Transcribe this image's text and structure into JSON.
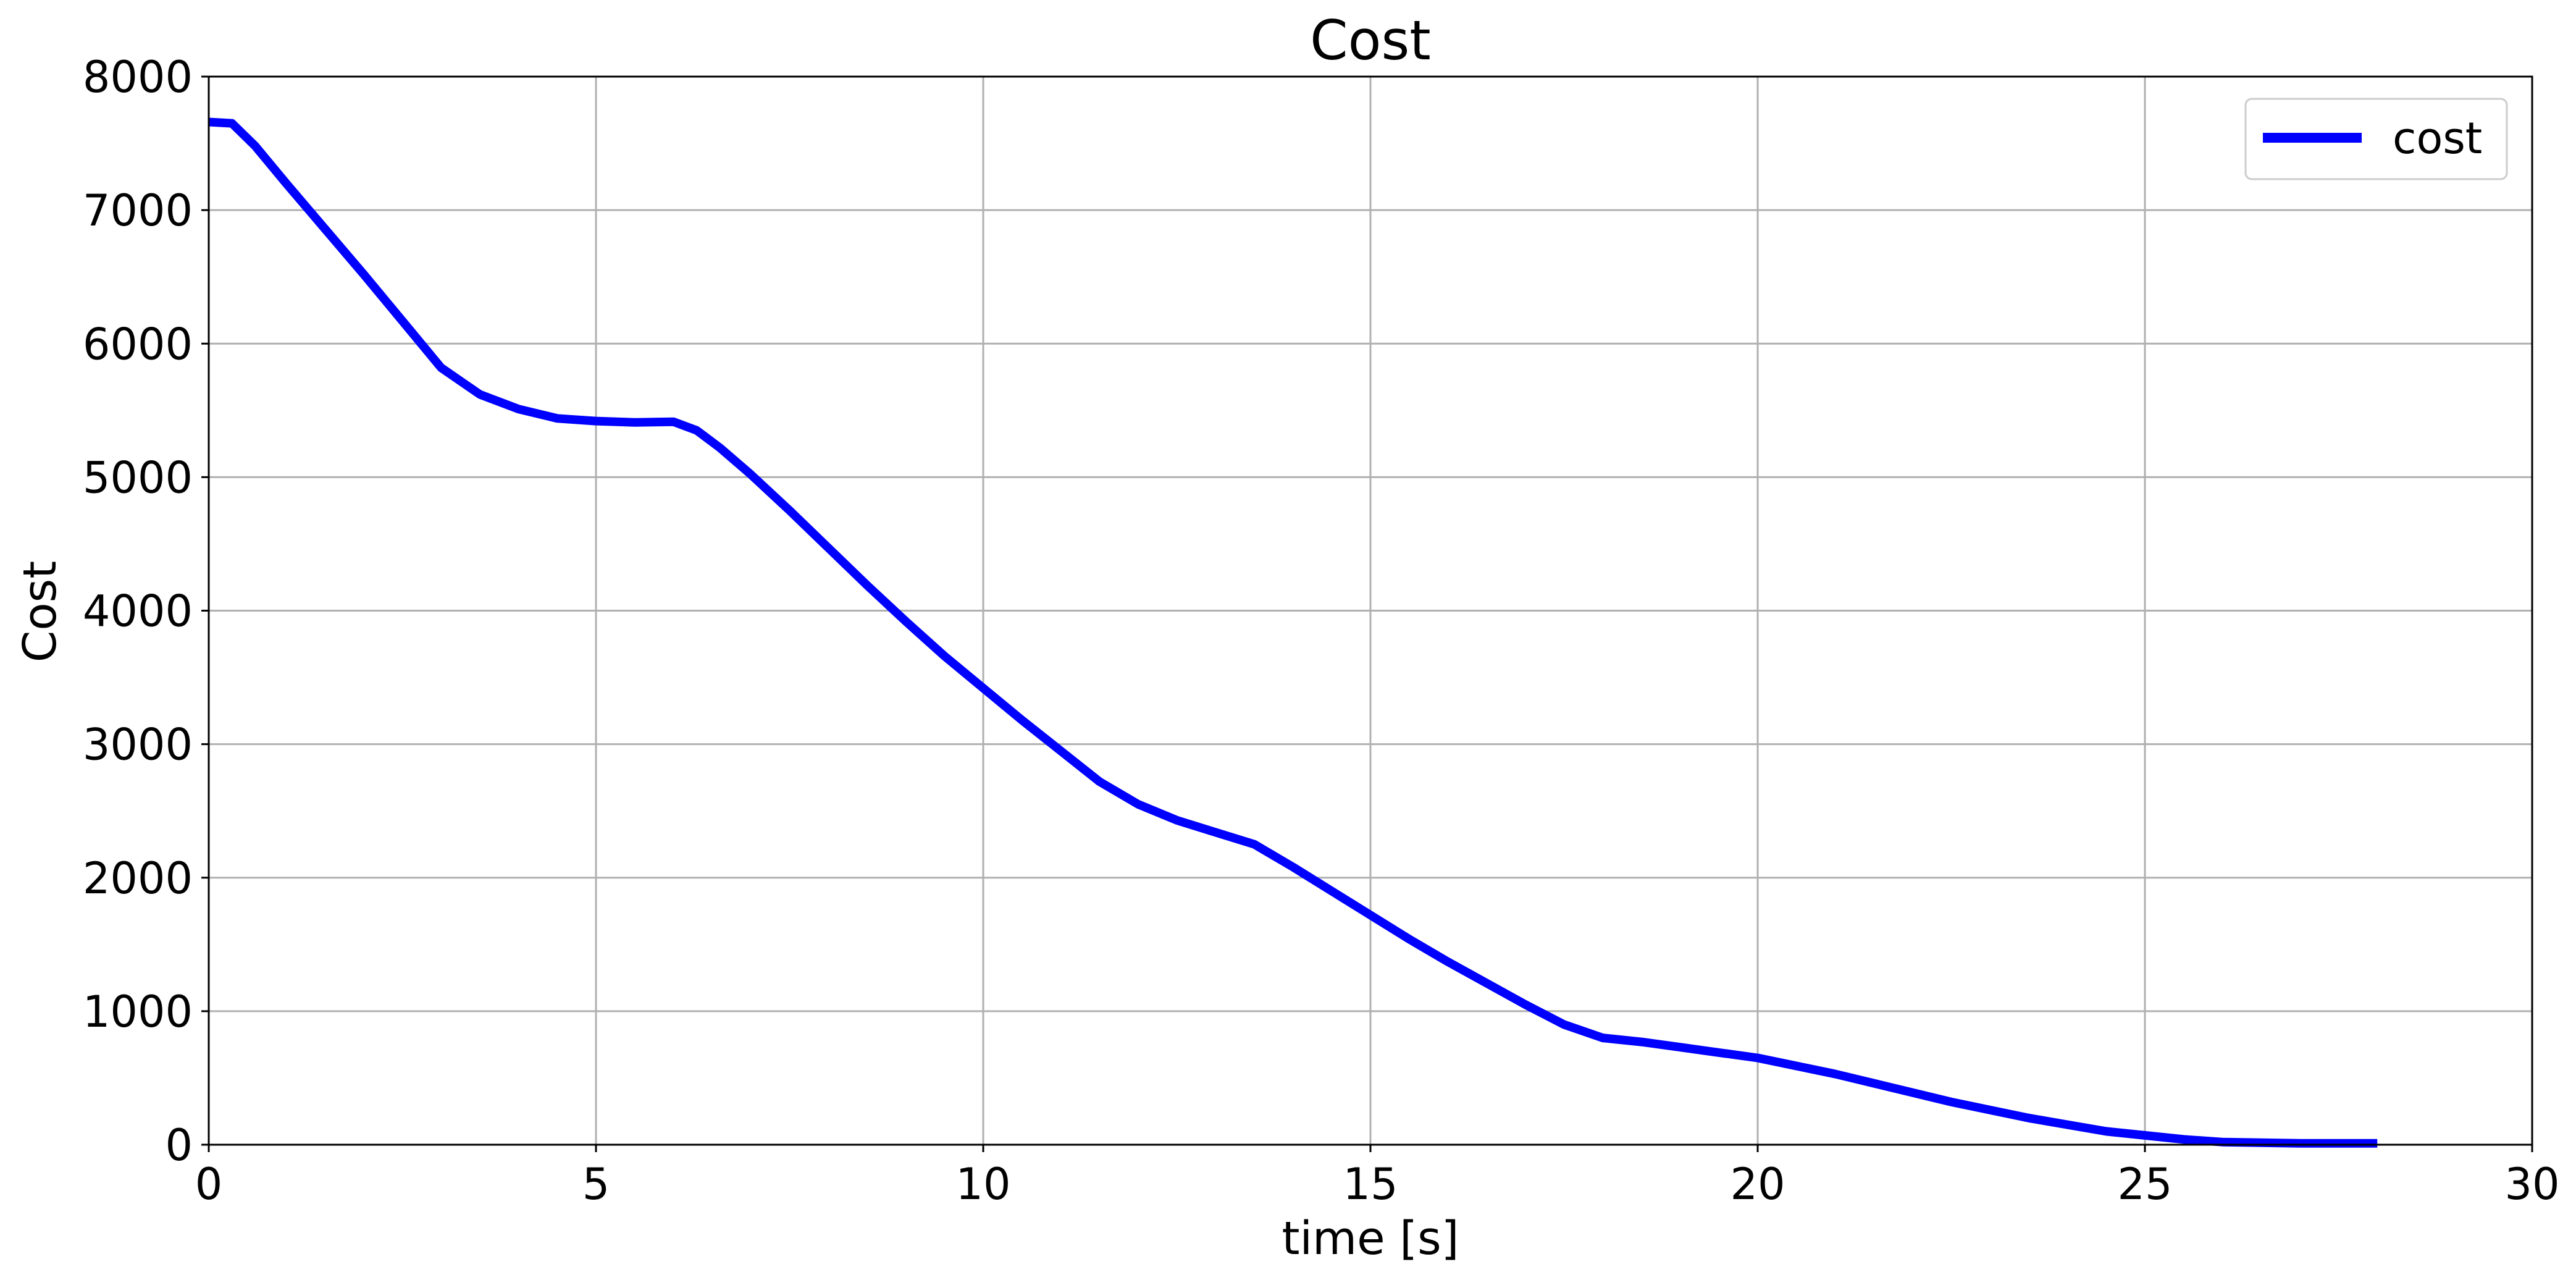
{
  "chart_data": {
    "type": "line",
    "title": "Cost",
    "xlabel": "time [s]",
    "ylabel": "Cost",
    "xlim": [
      0,
      30
    ],
    "ylim": [
      0,
      8000
    ],
    "xticks": [
      0,
      5,
      10,
      15,
      20,
      25,
      30
    ],
    "yticks": [
      0,
      1000,
      2000,
      3000,
      4000,
      5000,
      6000,
      7000,
      8000
    ],
    "grid": true,
    "legend_position": "top-right",
    "series": [
      {
        "name": "cost",
        "color": "#0000ff",
        "x": [
          0,
          0.3,
          0.6,
          1.0,
          1.5,
          2.0,
          2.5,
          3.0,
          3.5,
          4.0,
          4.5,
          5.0,
          5.5,
          6.0,
          6.3,
          6.6,
          7.0,
          7.5,
          8.0,
          8.5,
          9.0,
          9.5,
          10.0,
          10.5,
          11.0,
          11.5,
          12.0,
          12.5,
          13.0,
          13.5,
          14.0,
          14.5,
          15.0,
          15.5,
          16.0,
          16.5,
          17.0,
          17.5,
          18.0,
          18.5,
          19.0,
          19.5,
          20.0,
          20.5,
          21.0,
          21.5,
          22.0,
          22.5,
          23.0,
          23.5,
          24.0,
          24.5,
          25.0,
          25.5,
          26.0,
          26.5,
          27.0,
          27.5,
          28.0
        ],
        "y": [
          7660,
          7650,
          7480,
          7200,
          6860,
          6520,
          6170,
          5820,
          5620,
          5510,
          5440,
          5420,
          5410,
          5415,
          5350,
          5220,
          5020,
          4750,
          4470,
          4190,
          3920,
          3660,
          3420,
          3180,
          2950,
          2720,
          2550,
          2430,
          2340,
          2250,
          2080,
          1900,
          1720,
          1540,
          1370,
          1210,
          1050,
          900,
          800,
          770,
          730,
          690,
          650,
          590,
          530,
          460,
          390,
          320,
          260,
          200,
          150,
          100,
          70,
          40,
          20,
          15,
          10,
          10,
          10
        ]
      }
    ]
  }
}
